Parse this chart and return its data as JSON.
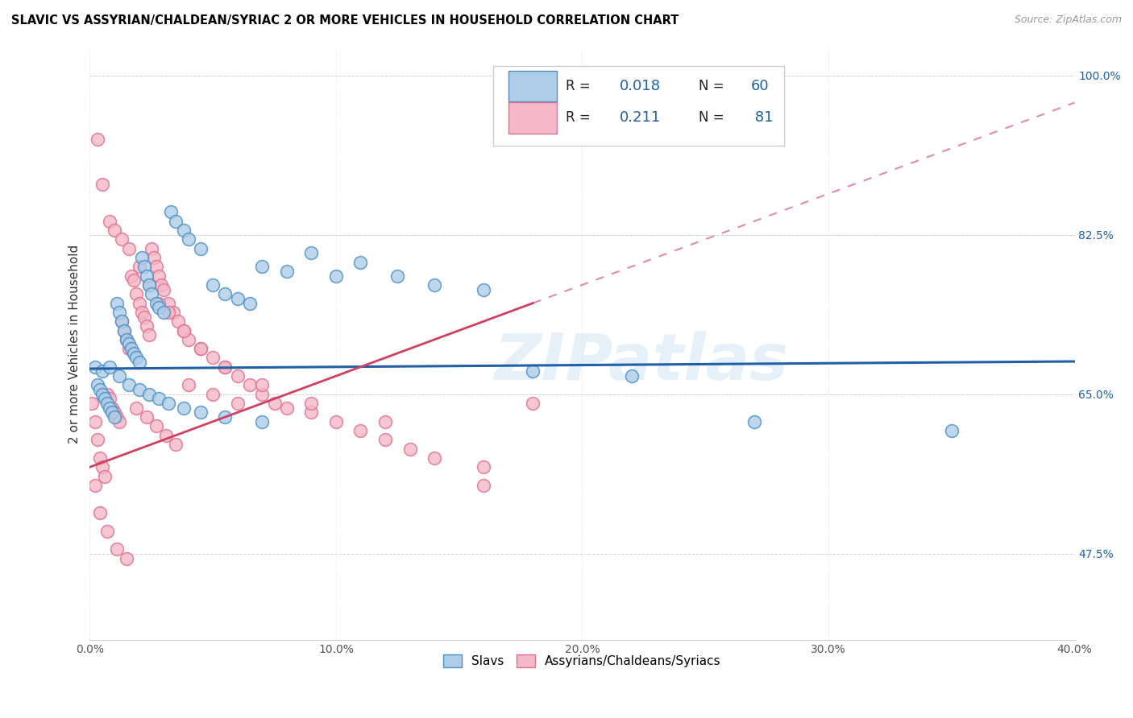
{
  "title": "SLAVIC VS ASSYRIAN/CHALDEAN/SYRIAC 2 OR MORE VEHICLES IN HOUSEHOLD CORRELATION CHART",
  "source": "Source: ZipAtlas.com",
  "xlim": [
    0.0,
    40.0
  ],
  "ylim": [
    38.0,
    103.0
  ],
  "blue_color": "#aecde8",
  "pink_color": "#f5b8c8",
  "blue_edge_color": "#4a90c4",
  "pink_edge_color": "#e07090",
  "blue_line_color": "#2060a8",
  "pink_line_color": "#d04060",
  "watermark": "ZIPatlas",
  "slavs_x": [
    0.2,
    0.3,
    0.4,
    0.5,
    0.6,
    0.7,
    0.8,
    0.9,
    1.0,
    1.1,
    1.2,
    1.3,
    1.4,
    1.5,
    1.6,
    1.7,
    1.8,
    1.9,
    2.0,
    2.1,
    2.2,
    2.3,
    2.4,
    2.5,
    2.7,
    2.8,
    3.0,
    3.3,
    3.5,
    3.8,
    4.0,
    4.5,
    5.0,
    5.5,
    6.0,
    6.5,
    7.0,
    8.0,
    9.0,
    10.0,
    11.0,
    12.5,
    14.0,
    16.0,
    18.0,
    22.0,
    27.0,
    35.0,
    0.5,
    0.8,
    1.2,
    1.6,
    2.0,
    2.4,
    2.8,
    3.2,
    3.8,
    4.5,
    5.5,
    7.0
  ],
  "slavs_y": [
    68.0,
    66.0,
    65.5,
    65.0,
    64.5,
    64.0,
    63.5,
    63.0,
    62.5,
    75.0,
    74.0,
    73.0,
    72.0,
    71.0,
    70.5,
    70.0,
    69.5,
    69.0,
    68.5,
    80.0,
    79.0,
    78.0,
    77.0,
    76.0,
    75.0,
    74.5,
    74.0,
    85.0,
    84.0,
    83.0,
    82.0,
    81.0,
    77.0,
    76.0,
    75.5,
    75.0,
    79.0,
    78.5,
    80.5,
    78.0,
    79.5,
    78.0,
    77.0,
    76.5,
    67.5,
    67.0,
    62.0,
    61.0,
    67.5,
    68.0,
    67.0,
    66.0,
    65.5,
    65.0,
    64.5,
    64.0,
    63.5,
    63.0,
    62.5,
    62.0
  ],
  "assyrians_x": [
    0.1,
    0.2,
    0.3,
    0.4,
    0.5,
    0.6,
    0.7,
    0.8,
    0.9,
    1.0,
    1.1,
    1.2,
    1.3,
    1.4,
    1.5,
    1.6,
    1.7,
    1.8,
    1.9,
    2.0,
    2.1,
    2.2,
    2.3,
    2.4,
    2.5,
    2.6,
    2.7,
    2.8,
    2.9,
    3.0,
    3.2,
    3.4,
    3.6,
    3.8,
    4.0,
    4.5,
    5.0,
    5.5,
    6.0,
    6.5,
    7.0,
    7.5,
    8.0,
    9.0,
    10.0,
    11.0,
    12.0,
    13.0,
    14.0,
    16.0,
    18.0,
    0.3,
    0.5,
    0.8,
    1.0,
    1.3,
    1.6,
    2.0,
    2.4,
    2.8,
    3.2,
    3.8,
    4.5,
    5.5,
    7.0,
    9.0,
    12.0,
    16.0,
    0.2,
    0.4,
    0.7,
    1.1,
    1.5,
    1.9,
    2.3,
    2.7,
    3.1,
    3.5,
    4.0,
    5.0,
    6.0
  ],
  "assyrians_y": [
    64.0,
    62.0,
    60.0,
    58.0,
    57.0,
    56.0,
    65.0,
    64.5,
    63.5,
    63.0,
    62.5,
    62.0,
    73.0,
    72.0,
    71.0,
    70.0,
    78.0,
    77.5,
    76.0,
    75.0,
    74.0,
    73.5,
    72.5,
    71.5,
    81.0,
    80.0,
    79.0,
    78.0,
    77.0,
    76.5,
    75.0,
    74.0,
    73.0,
    72.0,
    71.0,
    70.0,
    69.0,
    68.0,
    67.0,
    66.0,
    65.0,
    64.0,
    63.5,
    63.0,
    62.0,
    61.0,
    60.0,
    59.0,
    58.0,
    57.0,
    64.0,
    93.0,
    88.0,
    84.0,
    83.0,
    82.0,
    81.0,
    79.0,
    77.0,
    75.0,
    74.0,
    72.0,
    70.0,
    68.0,
    66.0,
    64.0,
    62.0,
    55.0,
    55.0,
    52.0,
    50.0,
    48.0,
    47.0,
    63.5,
    62.5,
    61.5,
    60.5,
    59.5,
    66.0,
    65.0,
    64.0
  ]
}
